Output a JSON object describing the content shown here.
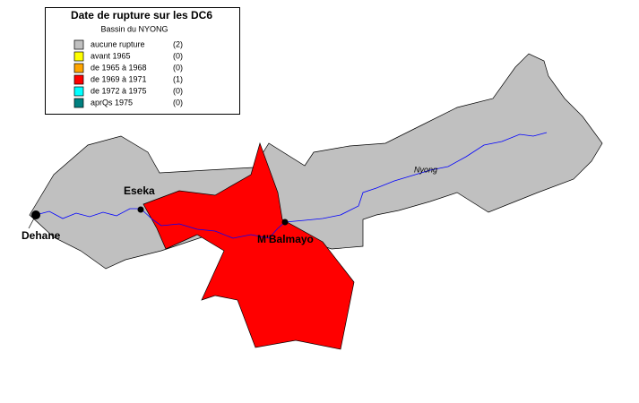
{
  "legend": {
    "title": "Date de rupture sur les DC6",
    "subtitle": "Bassin du NYONG",
    "items": [
      {
        "label": "aucune rupture",
        "count": "(2)",
        "color": "#c0c0c0"
      },
      {
        "label": "avant 1965",
        "count": "(0)",
        "color": "#ffff00"
      },
      {
        "label": "de 1965 à 1968",
        "count": "(0)",
        "color": "#ffa500"
      },
      {
        "label": "de 1969 à 1971",
        "count": "(1)",
        "color": "#ff0000"
      },
      {
        "label": "de 1972 à 1975",
        "count": "(0)",
        "color": "#00ffff"
      },
      {
        "label": "aprQs 1975",
        "count": "(0)",
        "color": "#008080"
      }
    ]
  },
  "places": {
    "dehane": "Dehane",
    "eseka": "Eseka",
    "mbalmayo": "M'Balmayo"
  },
  "river": "Nyong"
}
